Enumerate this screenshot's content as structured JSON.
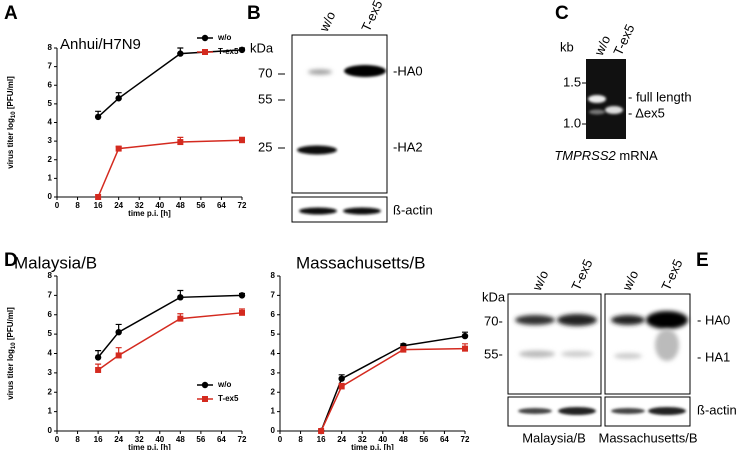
{
  "figure": {
    "panel_labels": [
      "A",
      "B",
      "C",
      "D",
      "E"
    ]
  },
  "chart_data": [
    {
      "type": "line",
      "title": "Anhui/H7N9",
      "xlabel": "time p.i. [h]",
      "ylabel": {
        "text": "virus titer log",
        "sub": "10",
        "rest": " [PFU/ml]"
      },
      "x": [
        16,
        24,
        48,
        72
      ],
      "xlim": [
        0,
        72
      ],
      "xticks": [
        0,
        8,
        16,
        24,
        32,
        40,
        48,
        56,
        64,
        72
      ],
      "ylim": [
        0,
        8
      ],
      "yticks": [
        0,
        1,
        2,
        3,
        4,
        5,
        6,
        7,
        8
      ],
      "legend": "upper right",
      "series": [
        {
          "name": "w/o",
          "color": "#000000",
          "marker": "circle",
          "values": [
            4.3,
            5.3,
            7.7,
            7.9
          ],
          "errors": [
            0.3,
            0.3,
            0.3,
            0.1
          ]
        },
        {
          "name": "T-ex5",
          "color": "#d42a1f",
          "marker": "square",
          "values": [
            0,
            2.6,
            2.95,
            3.05
          ],
          "errors": [
            0,
            0.1,
            0.25,
            0.15
          ]
        }
      ]
    },
    {
      "type": "line",
      "title": "Malaysia/B",
      "xlabel": "time p.i. [h]",
      "ylabel": {
        "text": "virus titer log",
        "sub": "10",
        "rest": " [PFU/ml]"
      },
      "x": [
        16,
        24,
        48,
        72
      ],
      "xlim": [
        0,
        72
      ],
      "xticks": [
        0,
        8,
        16,
        24,
        32,
        40,
        48,
        56,
        64,
        72
      ],
      "ylim": [
        0,
        8
      ],
      "yticks": [
        0,
        1,
        2,
        3,
        4,
        5,
        6,
        7,
        8
      ],
      "legend": "lower right",
      "series": [
        {
          "name": "w/o",
          "color": "#000000",
          "marker": "circle",
          "values": [
            3.8,
            5.1,
            6.9,
            7.0
          ],
          "errors": [
            0.35,
            0.4,
            0.35,
            0.1
          ]
        },
        {
          "name": "T-ex5",
          "color": "#d42a1f",
          "marker": "square",
          "values": [
            3.15,
            3.9,
            5.8,
            6.1
          ],
          "errors": [
            0.3,
            0.4,
            0.25,
            0.2
          ]
        }
      ]
    },
    {
      "type": "line",
      "title": "Massachusetts/B",
      "xlabel": "time p.i. [h]",
      "x": [
        16,
        24,
        48,
        72
      ],
      "xlim": [
        0,
        72
      ],
      "xticks": [
        0,
        8,
        16,
        24,
        32,
        40,
        48,
        56,
        64,
        72
      ],
      "ylim": [
        0,
        8
      ],
      "yticks": [
        0,
        1,
        2,
        3,
        4,
        5,
        6,
        7,
        8
      ],
      "series": [
        {
          "color": "#000000",
          "marker": "circle",
          "values": [
            0,
            2.7,
            4.4,
            4.9
          ],
          "errors": [
            0,
            0.2,
            0.1,
            0.2
          ]
        },
        {
          "color": "#d42a1f",
          "marker": "square",
          "values": [
            0,
            2.3,
            4.2,
            4.25
          ],
          "errors": [
            0,
            0.15,
            0.15,
            0.25
          ]
        }
      ]
    }
  ],
  "blot_B": {
    "unit": "kDa",
    "markers": [
      "70",
      "55",
      "25"
    ],
    "lanes": [
      "w/o",
      "T-ex5"
    ],
    "bands": [
      "-HA0",
      "-HA2"
    ],
    "loading": "ß-actin"
  },
  "gel_C": {
    "unit": "kb",
    "markers": [
      "1.5",
      "1.0"
    ],
    "lanes": [
      "w/o",
      "T-ex5"
    ],
    "bands": [
      "- full length",
      "- Δex5"
    ],
    "gene": "TMPRSS2",
    "caption": " mRNA"
  },
  "blot_E": {
    "unit": "kDa",
    "markers": [
      "70-",
      "55-"
    ],
    "lanes": [
      "w/o",
      "T-ex5",
      "w/o",
      "T-ex5"
    ],
    "bands": [
      "- HA0",
      "- HA1"
    ],
    "loading": "ß-actin",
    "strains": [
      "Malaysia/B",
      "Massachusetts/B"
    ]
  }
}
